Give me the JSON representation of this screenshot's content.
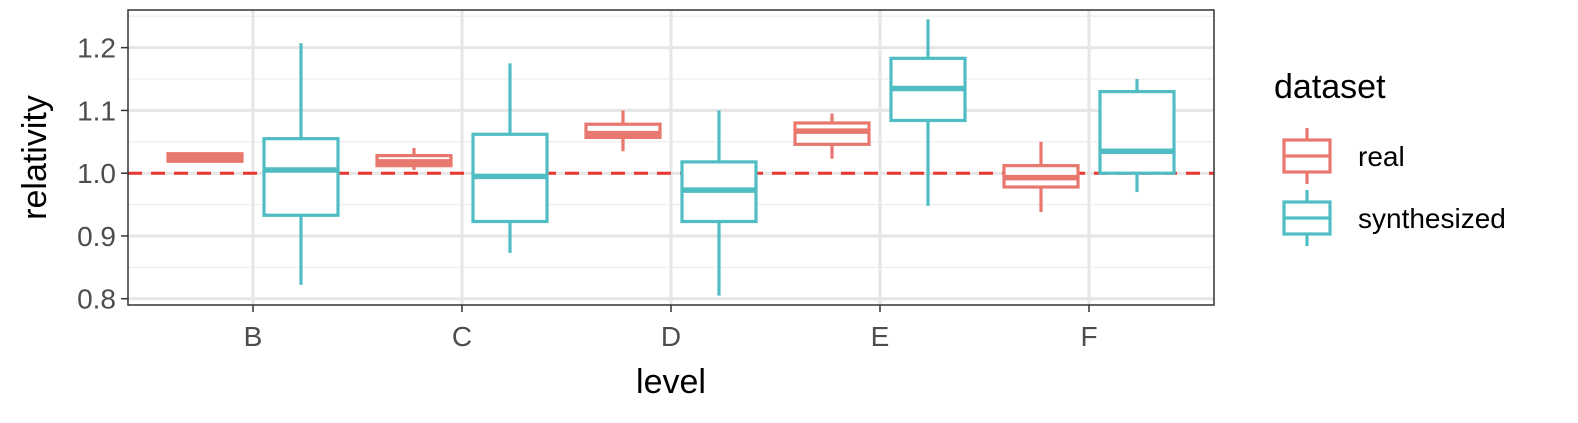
{
  "chart_data": {
    "type": "box",
    "xlabel": "level",
    "ylabel": "relativity",
    "categories": [
      "B",
      "C",
      "D",
      "E",
      "F"
    ],
    "ylim": [
      0.79,
      1.26
    ],
    "yticks": [
      0.8,
      0.9,
      1.0,
      1.1,
      1.2
    ],
    "ytick_labels": [
      "0.8",
      "0.9",
      "1.0",
      "1.1",
      "1.2"
    ],
    "reference_line": {
      "y": 1.0,
      "style": "dashed",
      "color": "#E8372F"
    },
    "grid": true,
    "legend": {
      "title": "dataset",
      "placement": "right",
      "entries": [
        "real",
        "synthesized"
      ]
    },
    "series": [
      {
        "name": "real",
        "color": "#E8776E",
        "boxes": [
          {
            "category": "B",
            "whisker_low": 1.019,
            "q1": 1.019,
            "median": 1.025,
            "q3": 1.031,
            "whisker_high": 1.033
          },
          {
            "category": "C",
            "whisker_low": 1.005,
            "q1": 1.012,
            "median": 1.018,
            "q3": 1.028,
            "whisker_high": 1.04
          },
          {
            "category": "D",
            "whisker_low": 1.035,
            "q1": 1.057,
            "median": 1.063,
            "q3": 1.078,
            "whisker_high": 1.1
          },
          {
            "category": "E",
            "whisker_low": 1.023,
            "q1": 1.046,
            "median": 1.067,
            "q3": 1.08,
            "whisker_high": 1.095
          },
          {
            "category": "F",
            "whisker_low": 0.938,
            "q1": 0.978,
            "median": 0.993,
            "q3": 1.012,
            "whisker_high": 1.05
          }
        ]
      },
      {
        "name": "synthesized",
        "color": "#4FBDC3",
        "boxes": [
          {
            "category": "B",
            "whisker_low": 0.822,
            "q1": 0.933,
            "median": 1.005,
            "q3": 1.055,
            "whisker_high": 1.207
          },
          {
            "category": "C",
            "whisker_low": 0.873,
            "q1": 0.923,
            "median": 0.995,
            "q3": 1.062,
            "whisker_high": 1.175
          },
          {
            "category": "D",
            "whisker_low": 0.805,
            "q1": 0.923,
            "median": 0.973,
            "q3": 1.018,
            "whisker_high": 1.1
          },
          {
            "category": "E",
            "whisker_low": 0.948,
            "q1": 1.084,
            "median": 1.135,
            "q3": 1.183,
            "whisker_high": 1.245
          },
          {
            "category": "F",
            "whisker_low": 0.97,
            "q1": 1.0,
            "median": 1.035,
            "q3": 1.13,
            "whisker_high": 1.15
          }
        ]
      }
    ]
  }
}
